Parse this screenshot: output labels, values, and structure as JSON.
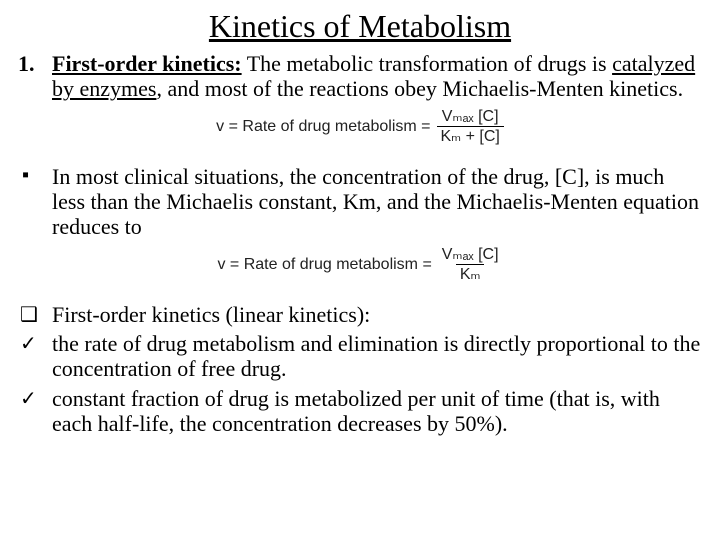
{
  "title": "Kinetics of Metabolism",
  "p1": {
    "marker": "1.",
    "lead": "First-order kinetics:",
    "rest_a": " The metabolic transformation of drugs is ",
    "underlined": "catalyzed by enzymes",
    "rest_b": ", and most of the reactions obey Michaelis-Menten kinetics."
  },
  "eq1": {
    "lhs": "v = Rate of drug metabolism =",
    "num": "Vₘₐₓ [C]",
    "den": "Kₘ + [C]"
  },
  "p2": {
    "marker": "▪",
    "text": "In most clinical situations, the concentration of the drug, [C], is much less than the Michaelis constant, Km, and the Michaelis-Menten equation reduces to"
  },
  "eq2": {
    "lhs": "v = Rate of drug metabolism =",
    "num": "Vₘₐₓ [C]",
    "den": "Kₘ"
  },
  "p3": {
    "marker": "❑",
    "text": "First-order kinetics (linear kinetics):"
  },
  "p4": {
    "marker": "✓",
    "text": " the rate of drug metabolism and elimination is directly proportional to the concentration of free drug."
  },
  "p5": {
    "marker": "✓",
    "text": "constant fraction of drug is metabolized per unit of time (that is, with each half-life, the concentration decreases by 50%)."
  }
}
